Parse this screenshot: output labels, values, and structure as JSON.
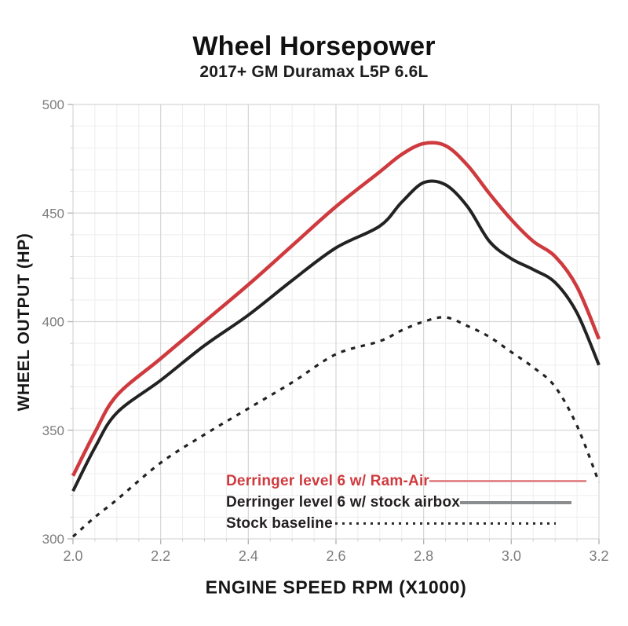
{
  "header": {
    "title": "Wheel Horsepower",
    "subtitle": "2017+ GM Duramax L5P 6.6L"
  },
  "chart_data": {
    "type": "line",
    "title": "Wheel Horsepower",
    "subtitle": "2017+ GM Duramax L5P 6.6L",
    "xlabel": "ENGINE SPEED RPM (X1000)",
    "ylabel": "WHEEL OUTPUT (HP)",
    "xlim": [
      2.0,
      3.2
    ],
    "ylim": [
      300,
      500
    ],
    "x_ticks": [
      "2.0",
      "2.2",
      "2.4",
      "2.6",
      "2.8",
      "3.0",
      "3.2"
    ],
    "y_ticks": [
      "300",
      "350",
      "400",
      "450",
      "500"
    ],
    "grid": {
      "major": true,
      "minor": true,
      "minor_x_step": 0.05,
      "minor_y_step": 10,
      "major_x_step": 0.2,
      "major_y_step": 50,
      "major_color": "#d6d6d6",
      "minor_color": "#ededed"
    },
    "legend_position": "inside-bottom-right",
    "x": [
      2.0,
      2.05,
      2.1,
      2.2,
      2.3,
      2.4,
      2.5,
      2.6,
      2.7,
      2.75,
      2.8,
      2.85,
      2.9,
      2.95,
      3.0,
      3.05,
      3.1,
      3.15,
      3.2
    ],
    "series": [
      {
        "name": "Derringer level 6 w/ Ram-Air",
        "style": "solid",
        "color": "#ce3a3e",
        "values": [
          329,
          349,
          366,
          383,
          400,
          417,
          435,
          453,
          469,
          477,
          482,
          481,
          472,
          459,
          447,
          437,
          430,
          416,
          392
        ]
      },
      {
        "name": "Derringer level 6 w/ stock airbox",
        "style": "solid",
        "color": "#222222",
        "values": [
          322,
          342,
          358,
          373,
          389,
          403,
          419,
          434,
          444,
          455,
          464,
          463,
          453,
          437,
          429,
          424,
          418,
          404,
          380
        ]
      },
      {
        "name": "Stock baseline",
        "style": "dashed",
        "color": "#222222",
        "values": [
          301,
          310,
          318,
          335,
          348,
          360,
          372,
          385,
          391,
          396,
          400,
          402,
          398,
          393,
          386,
          379,
          370,
          352,
          326
        ]
      }
    ],
    "tick_label_color": "#7d7d7d"
  }
}
